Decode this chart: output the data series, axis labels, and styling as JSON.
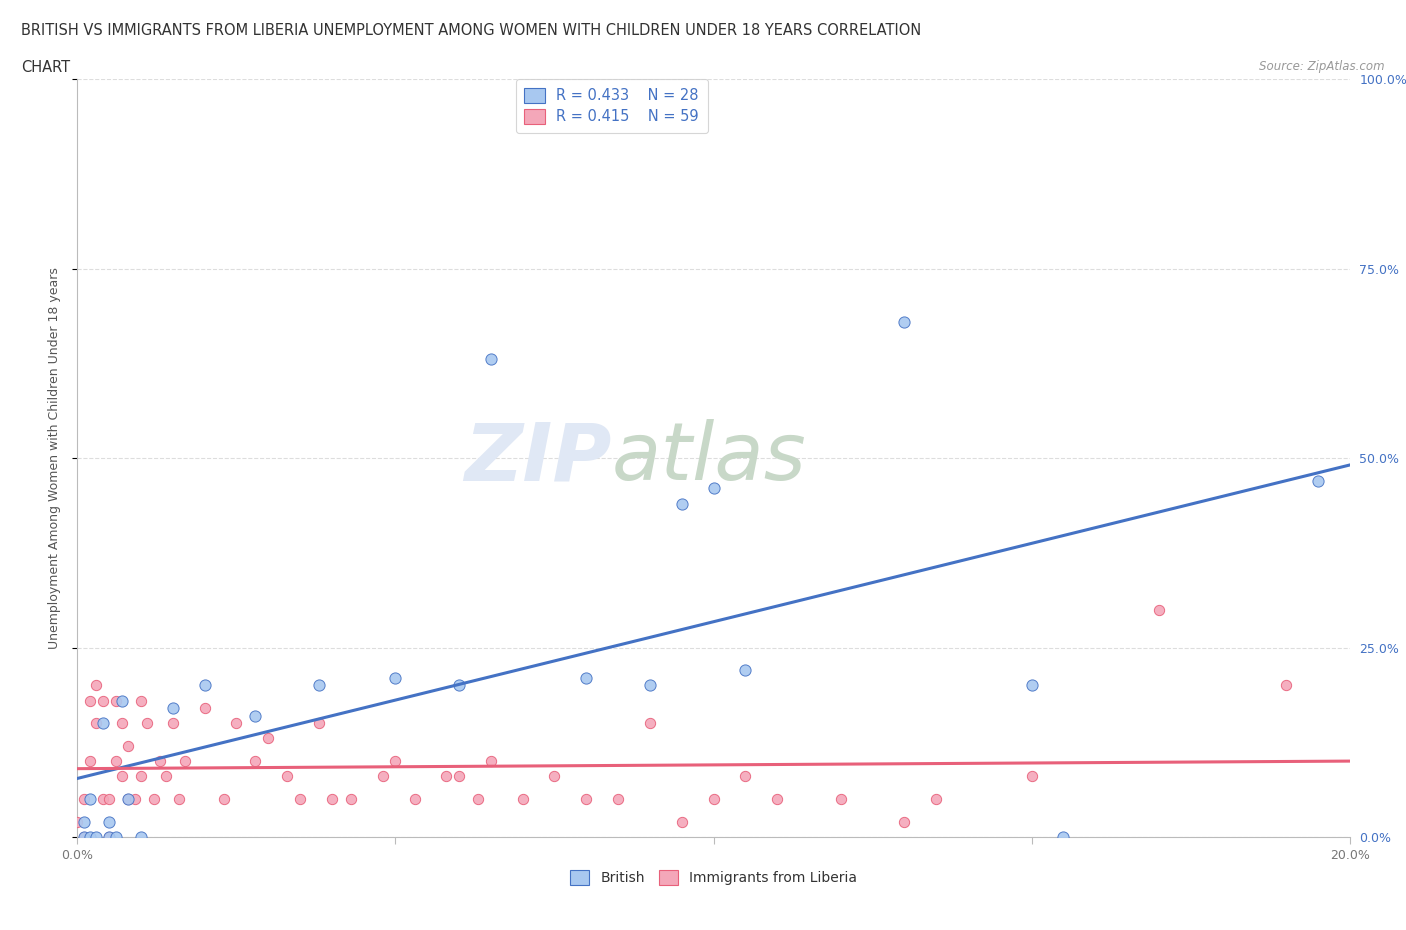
{
  "title_line1": "BRITISH VS IMMIGRANTS FROM LIBERIA UNEMPLOYMENT AMONG WOMEN WITH CHILDREN UNDER 18 YEARS CORRELATION",
  "title_line2": "CHART",
  "source_text": "Source: ZipAtlas.com",
  "ylabel": "Unemployment Among Women with Children Under 18 years",
  "xlim": [
    0.0,
    0.2
  ],
  "ylim": [
    0.0,
    1.0
  ],
  "british_R": 0.433,
  "british_N": 28,
  "liberia_R": 0.415,
  "liberia_N": 59,
  "british_color": "#a8c8f0",
  "liberia_color": "#f4a7b9",
  "british_line_color": "#4472C4",
  "liberia_line_color": "#E8607A",
  "background_color": "#ffffff",
  "grid_color": "#dddddd",
  "british_x": [
    0.001,
    0.001,
    0.002,
    0.002,
    0.003,
    0.004,
    0.005,
    0.005,
    0.006,
    0.007,
    0.008,
    0.01,
    0.015,
    0.02,
    0.028,
    0.038,
    0.05,
    0.06,
    0.065,
    0.08,
    0.09,
    0.095,
    0.1,
    0.105,
    0.13,
    0.15,
    0.155,
    0.195
  ],
  "british_y": [
    0.02,
    0.0,
    0.05,
    0.0,
    0.0,
    0.15,
    0.0,
    0.02,
    0.0,
    0.18,
    0.05,
    0.0,
    0.17,
    0.2,
    0.16,
    0.2,
    0.21,
    0.2,
    0.63,
    0.21,
    0.2,
    0.44,
    0.46,
    0.22,
    0.68,
    0.2,
    0.0,
    0.47
  ],
  "liberia_x": [
    0.0,
    0.001,
    0.001,
    0.002,
    0.002,
    0.003,
    0.003,
    0.004,
    0.004,
    0.005,
    0.005,
    0.006,
    0.006,
    0.007,
    0.007,
    0.008,
    0.008,
    0.009,
    0.01,
    0.01,
    0.011,
    0.012,
    0.013,
    0.014,
    0.015,
    0.016,
    0.017,
    0.02,
    0.023,
    0.025,
    0.028,
    0.03,
    0.033,
    0.035,
    0.038,
    0.04,
    0.043,
    0.048,
    0.05,
    0.053,
    0.058,
    0.06,
    0.063,
    0.065,
    0.07,
    0.075,
    0.08,
    0.085,
    0.09,
    0.095,
    0.1,
    0.105,
    0.11,
    0.12,
    0.13,
    0.135,
    0.15,
    0.17,
    0.19
  ],
  "liberia_y": [
    0.02,
    0.0,
    0.05,
    0.1,
    0.18,
    0.15,
    0.2,
    0.05,
    0.18,
    0.05,
    0.0,
    0.1,
    0.18,
    0.08,
    0.15,
    0.05,
    0.12,
    0.05,
    0.08,
    0.18,
    0.15,
    0.05,
    0.1,
    0.08,
    0.15,
    0.05,
    0.1,
    0.17,
    0.05,
    0.15,
    0.1,
    0.13,
    0.08,
    0.05,
    0.15,
    0.05,
    0.05,
    0.08,
    0.1,
    0.05,
    0.08,
    0.08,
    0.05,
    0.1,
    0.05,
    0.08,
    0.05,
    0.05,
    0.15,
    0.02,
    0.05,
    0.08,
    0.05,
    0.05,
    0.02,
    0.05,
    0.08,
    0.3,
    0.2
  ]
}
